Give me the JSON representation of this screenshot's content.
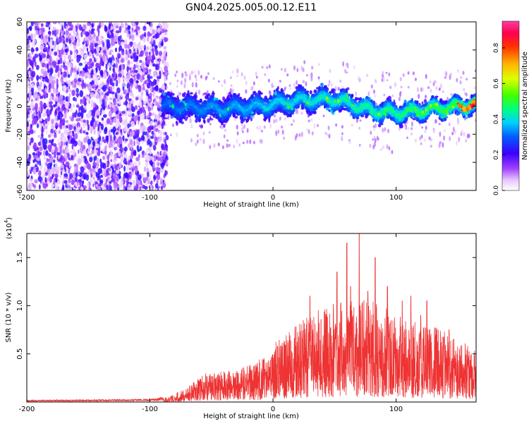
{
  "title": "GN04.2025.005.00.12.E11",
  "chart_data": [
    {
      "type": "heatmap",
      "xlabel": "Height of straight line (km)",
      "ylabel": "Frequency (Hz)",
      "xlim": [
        -200,
        165
      ],
      "ylim": [
        -60,
        60
      ],
      "xticks": [
        -200,
        -100,
        0,
        100
      ],
      "yticks": [
        60,
        40,
        20,
        0,
        -20,
        -40,
        -60
      ],
      "colorbar": {
        "label": "Normalized spectral amplitude",
        "range": [
          0,
          0.95
        ],
        "ticks": [
          0.0,
          0.2,
          0.4,
          0.6,
          0.8
        ],
        "position": "right"
      },
      "features": {
        "noise_region_x": [
          -200,
          -90
        ],
        "band_start_x": -90,
        "band_center_hz": [
          {
            "x": -90,
            "f": 0
          },
          {
            "x": -40,
            "f": -2
          },
          {
            "x": -10,
            "f": 0
          },
          {
            "x": 20,
            "f": 4
          },
          {
            "x": 50,
            "f": 5
          },
          {
            "x": 80,
            "f": -3
          },
          {
            "x": 100,
            "f": -5
          },
          {
            "x": 130,
            "f": -2
          },
          {
            "x": 165,
            "f": 1
          }
        ],
        "band_halfwidth_hz": 12
      },
      "grid": false
    },
    {
      "type": "line",
      "xlabel": "Height of straight line (km)",
      "ylabel": "SNR (10 * v/v)",
      "ymultiplier": "(x10",
      "ymultiplier_exp": "4",
      "ymultiplier_close": ")",
      "xlim": [
        -200,
        165
      ],
      "ylim": [
        0,
        1.75
      ],
      "xticks": [
        -200,
        -100,
        0,
        100
      ],
      "yticks": [
        0.5,
        1.0,
        1.5
      ],
      "series": [
        {
          "color": "#ee3333",
          "envelope": [
            {
              "x": -200,
              "y": 0.02
            },
            {
              "x": -100,
              "y": 0.03
            },
            {
              "x": -85,
              "y": 0.06
            },
            {
              "x": -70,
              "y": 0.15
            },
            {
              "x": -55,
              "y": 0.3
            },
            {
              "x": -30,
              "y": 0.33
            },
            {
              "x": -10,
              "y": 0.45
            },
            {
              "x": 0,
              "y": 0.6
            },
            {
              "x": 10,
              "y": 0.7
            },
            {
              "x": 25,
              "y": 0.9
            },
            {
              "x": 40,
              "y": 1.0
            },
            {
              "x": 60,
              "y": 1.05
            },
            {
              "x": 70,
              "y": 1.1
            },
            {
              "x": 90,
              "y": 1.0
            },
            {
              "x": 110,
              "y": 0.85
            },
            {
              "x": 130,
              "y": 0.8
            },
            {
              "x": 150,
              "y": 0.65
            },
            {
              "x": 165,
              "y": 0.55
            }
          ],
          "peaks": [
            {
              "x": 30,
              "y": 1.1
            },
            {
              "x": 52,
              "y": 1.35
            },
            {
              "x": 60,
              "y": 1.65
            },
            {
              "x": 63,
              "y": 1.2
            },
            {
              "x": 70,
              "y": 1.75
            },
            {
              "x": 77,
              "y": 1.15
            },
            {
              "x": 83,
              "y": 1.5
            },
            {
              "x": 93,
              "y": 1.2
            },
            {
              "x": 105,
              "y": 1.05
            },
            {
              "x": 112,
              "y": 1.1
            },
            {
              "x": 120,
              "y": 0.9
            },
            {
              "x": 125,
              "y": 1.05
            },
            {
              "x": 143,
              "y": 0.75
            }
          ]
        }
      ],
      "grid": false
    }
  ]
}
